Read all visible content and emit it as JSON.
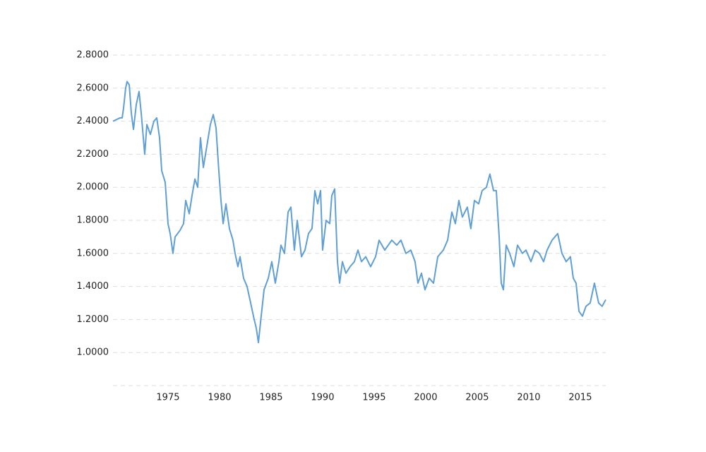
{
  "chart_data": {
    "type": "line",
    "x": [
      1969.66,
      1970.34,
      1970.55,
      1970.69,
      1970.89,
      1971.03,
      1971.24,
      1971.44,
      1971.65,
      1971.92,
      1972.19,
      1972.4,
      1972.74,
      1972.95,
      1973.29,
      1973.63,
      1973.91,
      1974.18,
      1974.39,
      1974.73,
      1975.0,
      1975.21,
      1975.48,
      1975.69,
      1976.17,
      1976.51,
      1976.72,
      1977.06,
      1977.33,
      1977.61,
      1977.88,
      1978.15,
      1978.43,
      1978.77,
      1979.11,
      1979.39,
      1979.66,
      1979.93,
      1980.14,
      1980.35,
      1980.62,
      1980.96,
      1981.3,
      1981.51,
      1981.78,
      1981.99,
      1982.33,
      1982.67,
      1983.02,
      1983.36,
      1983.56,
      1983.77,
      1984.04,
      1984.32,
      1984.73,
      1985.07,
      1985.41,
      1985.76,
      1985.96,
      1986.3,
      1986.65,
      1986.92,
      1987.26,
      1987.54,
      1987.95,
      1988.29,
      1988.63,
      1988.97,
      1989.25,
      1989.52,
      1989.8,
      1990.0,
      1990.34,
      1990.69,
      1990.89,
      1991.17,
      1991.44,
      1991.65,
      1991.92,
      1992.26,
      1992.67,
      1993.08,
      1993.43,
      1993.77,
      1994.18,
      1994.66,
      1995.14,
      1995.48,
      1996.03,
      1996.71,
      1997.19,
      1997.6,
      1998.08,
      1998.56,
      1998.97,
      1999.25,
      1999.59,
      1999.93,
      2000.34,
      2000.76,
      2001.17,
      2001.71,
      2002.13,
      2002.54,
      2002.88,
      2003.22,
      2003.56,
      2004.04,
      2004.38,
      2004.73,
      2005.14,
      2005.48,
      2005.89,
      2006.23,
      2006.58,
      2006.85,
      2007.13,
      2007.33,
      2007.54,
      2007.81,
      2008.15,
      2008.56,
      2008.91,
      2009.38,
      2009.73,
      2010.21,
      2010.62,
      2011.03,
      2011.44,
      2011.78,
      2012.26,
      2012.81,
      2013.22,
      2013.63,
      2014.04,
      2014.32,
      2014.59,
      2014.87,
      2015.21,
      2015.55,
      2015.96,
      2016.37,
      2016.78,
      2017.12,
      2017.47
    ],
    "series": [
      {
        "color": "#5f9fd6",
        "values": [
          2.4,
          2.42,
          2.42,
          2.48,
          2.6,
          2.64,
          2.62,
          2.45,
          2.35,
          2.5,
          2.58,
          2.45,
          2.2,
          2.38,
          2.32,
          2.4,
          2.42,
          2.3,
          2.1,
          2.03,
          1.78,
          1.72,
          1.6,
          1.7,
          1.74,
          1.78,
          1.92,
          1.84,
          1.95,
          2.05,
          2.0,
          2.3,
          2.12,
          2.25,
          2.38,
          2.44,
          2.36,
          2.1,
          1.92,
          1.78,
          1.9,
          1.75,
          1.68,
          1.6,
          1.52,
          1.58,
          1.45,
          1.4,
          1.3,
          1.2,
          1.15,
          1.06,
          1.22,
          1.38,
          1.45,
          1.55,
          1.42,
          1.55,
          1.65,
          1.6,
          1.85,
          1.88,
          1.62,
          1.8,
          1.58,
          1.62,
          1.72,
          1.75,
          1.98,
          1.9,
          1.98,
          1.62,
          1.8,
          1.78,
          1.95,
          1.99,
          1.55,
          1.42,
          1.55,
          1.48,
          1.52,
          1.55,
          1.62,
          1.55,
          1.58,
          1.52,
          1.58,
          1.68,
          1.62,
          1.68,
          1.65,
          1.68,
          1.6,
          1.62,
          1.55,
          1.42,
          1.48,
          1.38,
          1.45,
          1.42,
          1.58,
          1.62,
          1.68,
          1.85,
          1.78,
          1.92,
          1.82,
          1.88,
          1.75,
          1.92,
          1.9,
          1.98,
          2.0,
          2.08,
          1.98,
          1.98,
          1.7,
          1.42,
          1.38,
          1.65,
          1.6,
          1.52,
          1.65,
          1.6,
          1.62,
          1.55,
          1.62,
          1.6,
          1.55,
          1.62,
          1.68,
          1.72,
          1.6,
          1.55,
          1.58,
          1.45,
          1.42,
          1.25,
          1.22,
          1.28,
          1.3,
          1.42,
          1.3,
          1.28,
          1.32
        ]
      }
    ],
    "xlim": [
      1969.66,
      2017.47
    ],
    "xticks": [
      1975,
      1980,
      1985,
      1990,
      1995,
      2000,
      2005,
      2010,
      2015
    ],
    "ylim": [
      0.8,
      2.8
    ],
    "yticks": [
      {
        "value": 1,
        "label": "1.0000"
      },
      {
        "value": 1.2,
        "label": "1.2000"
      },
      {
        "value": 1.4,
        "label": "1.4000"
      },
      {
        "value": 1.6,
        "label": "1.6000"
      },
      {
        "value": 1.8,
        "label": "1.8000"
      },
      {
        "value": 2,
        "label": "2.0000"
      },
      {
        "value": 2.2,
        "label": "2.2000"
      },
      {
        "value": 2.4,
        "label": "2.4000"
      },
      {
        "value": 2.6,
        "label": "2.6000"
      },
      {
        "value": 2.8,
        "label": "2.8000"
      }
    ],
    "grid": true
  }
}
